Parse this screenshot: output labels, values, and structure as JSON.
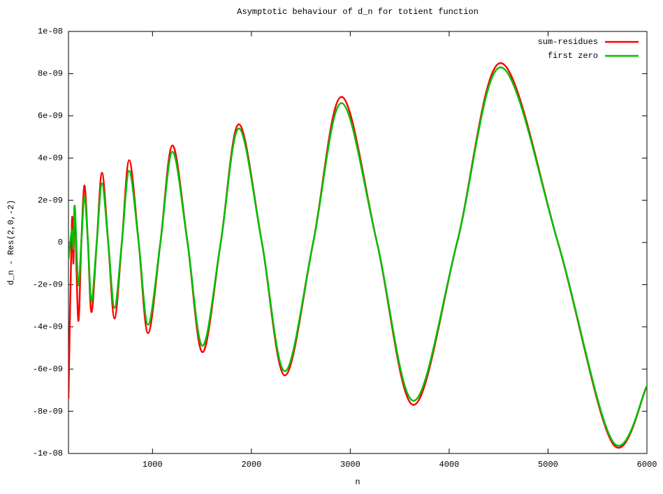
{
  "chart_data": {
    "type": "line",
    "title": "Asymptotic behaviour of d_n for totient function",
    "x_label": "n",
    "y_label": "d_n - Res(2,0,-2)",
    "x": [
      150,
      185,
      200,
      214,
      249,
      280,
      312,
      347,
      383,
      436,
      489,
      552,
      616,
      690,
      764,
      860,
      955,
      1080,
      1202,
      1354,
      1506,
      1690,
      1873,
      2106,
      2339,
      2625,
      2911,
      3270,
      3640,
      4080,
      4520,
      5100,
      5650,
      6000
    ],
    "series": [
      {
        "name": "sum-residues",
        "color": "#ff0000",
        "values": [
          -7.4e-09,
          1e-09,
          -1e-09,
          1.7e-09,
          -3.7e-09,
          0,
          2.7e-09,
          0,
          -3.3e-09,
          0,
          3.3e-09,
          0,
          -3.6e-09,
          0,
          3.9e-09,
          0,
          -4.3e-09,
          0,
          4.6e-09,
          0,
          -5.2e-09,
          0,
          5.6e-09,
          0,
          -6.3e-09,
          0,
          6.9e-09,
          0,
          -7.7e-09,
          0,
          8.5e-09,
          0,
          -9.5e-09,
          -6.8e-09
        ]
      },
      {
        "name": "first zero",
        "color": "#00c000",
        "values": [
          -8e-10,
          6e-10,
          -3e-10,
          1.7e-09,
          -2e-09,
          0,
          2.2e-09,
          0,
          -2.8e-09,
          0,
          2.8e-09,
          0,
          -3.1e-09,
          0,
          3.4e-09,
          0,
          -3.9e-09,
          0,
          4.3e-09,
          0,
          -4.9e-09,
          0,
          5.4e-09,
          0,
          -6.1e-09,
          0,
          6.6e-09,
          0,
          -7.5e-09,
          0,
          8.3e-09,
          0,
          -9.4e-09,
          -6.8e-09
        ]
      }
    ],
    "xlim": [
      150,
      6000
    ],
    "xticks": [
      1000,
      2000,
      3000,
      4000,
      5000,
      6000
    ],
    "ylim": [
      -1e-08,
      1e-08
    ],
    "yticks": [
      {
        "value": -1e-08,
        "label": "-1e-08"
      },
      {
        "value": -8e-09,
        "label": "-8e-09"
      },
      {
        "value": -6e-09,
        "label": "-6e-09"
      },
      {
        "value": -4e-09,
        "label": "-4e-09"
      },
      {
        "value": -2e-09,
        "label": "-2e-09"
      },
      0,
      {
        "value": 2e-09,
        "label": "2e-09"
      },
      {
        "value": 4e-09,
        "label": "4e-09"
      },
      {
        "value": 6e-09,
        "label": "6e-09"
      },
      {
        "value": 8e-09,
        "label": "8e-09"
      },
      {
        "value": 1e-08,
        "label": "1e-08"
      }
    ],
    "legend": "top-right",
    "grid": false
  }
}
